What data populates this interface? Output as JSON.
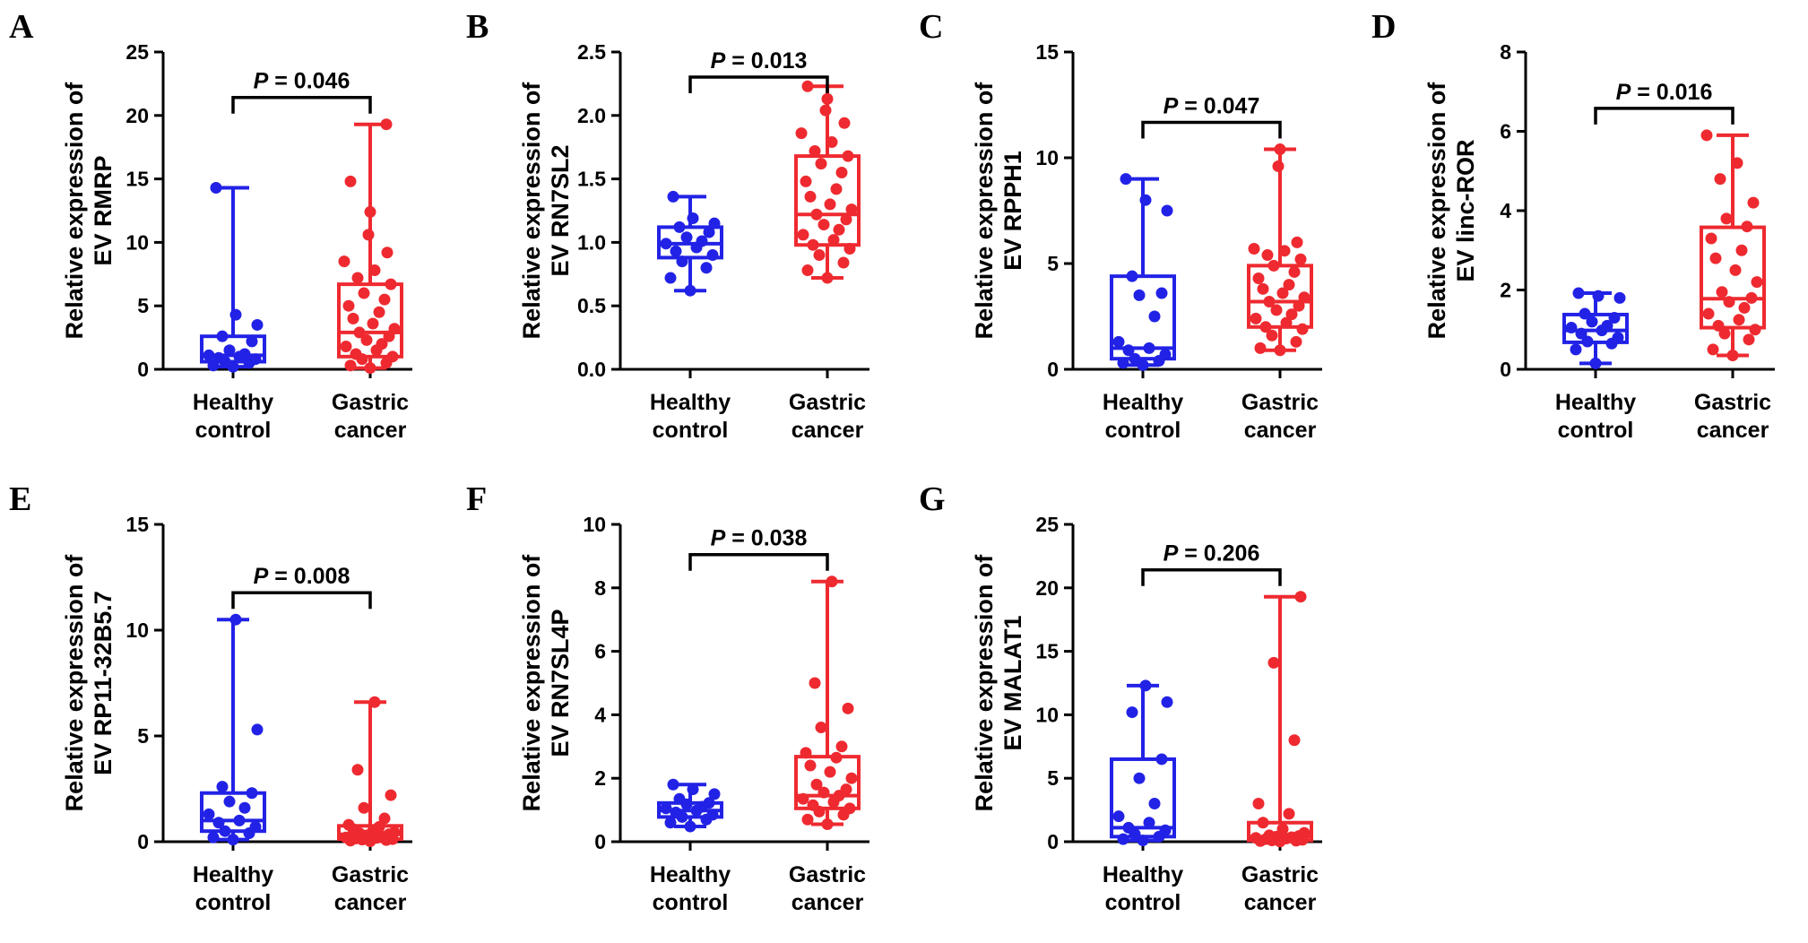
{
  "figure": {
    "colors": {
      "healthy": "#2222E6",
      "cancer": "#EE2A30",
      "axis": "#000000"
    },
    "categories": [
      {
        "line1": "Healthy",
        "line2": "control"
      },
      {
        "line1": "Gastric",
        "line2": "cancer"
      }
    ]
  },
  "chart_data": [
    {
      "type": "box",
      "panel": "A",
      "ylabel_line1": "Relative expression of",
      "ylabel_line2": "EV RMRP",
      "ylim": [
        0,
        25
      ],
      "yticks": [
        "0",
        "5",
        "10",
        "15",
        "20",
        "25"
      ],
      "p_label": "P",
      "p_value": " = 0.046",
      "series": [
        {
          "name": "Healthy control",
          "min": 0.2,
          "q1": 0.6,
          "median": 1.1,
          "q3": 2.6,
          "max": 14.3,
          "points": [
            0.2,
            0.3,
            0.5,
            0.6,
            0.8,
            0.9,
            1.0,
            1.1,
            1.2,
            1.5,
            2.2,
            2.6,
            3.5,
            4.3,
            14.3
          ]
        },
        {
          "name": "Gastric cancer",
          "min": 0.1,
          "q1": 1.0,
          "median": 2.9,
          "q3": 6.7,
          "max": 19.3,
          "points": [
            0.1,
            0.3,
            0.5,
            0.8,
            1.0,
            1.2,
            1.5,
            1.8,
            2.0,
            2.3,
            2.6,
            2.9,
            3.2,
            3.6,
            4.0,
            4.5,
            5.0,
            5.5,
            6.0,
            6.7,
            7.2,
            7.8,
            8.5,
            9.2,
            10.6,
            12.4,
            14.8,
            19.3
          ]
        }
      ]
    },
    {
      "type": "box",
      "panel": "B",
      "ylabel_line1": "Relative expression of",
      "ylabel_line2": "EV RN7SL2",
      "ylim": [
        0,
        2.5
      ],
      "yticks": [
        "0.0",
        "0.5",
        "1.0",
        "1.5",
        "2.0",
        "2.5"
      ],
      "p_label": "P",
      "p_value": " = 0.013",
      "series": [
        {
          "name": "Healthy control",
          "min": 0.62,
          "q1": 0.88,
          "median": 0.99,
          "q3": 1.12,
          "max": 1.36,
          "points": [
            0.62,
            0.72,
            0.8,
            0.85,
            0.9,
            0.93,
            0.96,
            0.99,
            1.01,
            1.04,
            1.08,
            1.12,
            1.15,
            1.19,
            1.36
          ]
        },
        {
          "name": "Gastric cancer",
          "min": 0.72,
          "q1": 0.98,
          "median": 1.22,
          "q3": 1.68,
          "max": 2.23,
          "points": [
            0.72,
            0.78,
            0.84,
            0.9,
            0.95,
            0.98,
            1.02,
            1.06,
            1.1,
            1.14,
            1.18,
            1.22,
            1.26,
            1.3,
            1.36,
            1.42,
            1.48,
            1.55,
            1.62,
            1.68,
            1.72,
            1.79,
            1.86,
            1.94,
            2.04,
            2.13,
            2.23
          ]
        }
      ]
    },
    {
      "type": "box",
      "panel": "C",
      "ylabel_line1": "Relative expression of",
      "ylabel_line2": "EV RPPH1",
      "ylim": [
        0,
        15
      ],
      "yticks": [
        "0",
        "5",
        "10",
        "15"
      ],
      "p_label": "P",
      "p_value": " = 0.047",
      "series": [
        {
          "name": "Healthy control",
          "min": 0.2,
          "q1": 0.5,
          "median": 1.0,
          "q3": 4.4,
          "max": 9.0,
          "points": [
            0.2,
            0.3,
            0.4,
            0.5,
            0.7,
            0.9,
            1.0,
            1.3,
            2.5,
            3.5,
            3.6,
            4.4,
            7.5,
            8.0,
            9.0
          ]
        },
        {
          "name": "Gastric cancer",
          "min": 0.9,
          "q1": 2.0,
          "median": 3.2,
          "q3": 4.9,
          "max": 10.4,
          "points": [
            0.9,
            1.0,
            1.3,
            1.6,
            1.9,
            2.0,
            2.2,
            2.4,
            2.6,
            2.8,
            3.0,
            3.2,
            3.4,
            3.6,
            3.8,
            4.0,
            4.3,
            4.6,
            4.9,
            5.2,
            5.4,
            5.6,
            5.7,
            6.0,
            9.6,
            10.4
          ]
        }
      ]
    },
    {
      "type": "box",
      "panel": "D",
      "ylabel_line1": "Relative expression of",
      "ylabel_line2": "EV linc-ROR",
      "ylim": [
        0,
        8
      ],
      "yticks": [
        "0",
        "2",
        "4",
        "6",
        "8"
      ],
      "p_label": "P",
      "p_value": " = 0.016",
      "series": [
        {
          "name": "Healthy control",
          "min": 0.15,
          "q1": 0.68,
          "median": 0.98,
          "q3": 1.38,
          "max": 1.92,
          "points": [
            0.15,
            0.5,
            0.65,
            0.7,
            0.8,
            0.9,
            0.98,
            1.05,
            1.1,
            1.2,
            1.3,
            1.4,
            1.8,
            1.85,
            1.92
          ]
        },
        {
          "name": "Gastric cancer",
          "min": 0.35,
          "q1": 1.05,
          "median": 1.78,
          "q3": 3.58,
          "max": 5.9,
          "points": [
            0.35,
            0.5,
            0.75,
            0.9,
            1.0,
            1.1,
            1.25,
            1.4,
            1.55,
            1.7,
            1.8,
            1.95,
            2.2,
            2.5,
            2.8,
            3.0,
            3.3,
            3.6,
            3.8,
            4.2,
            4.8,
            5.2,
            5.9
          ]
        }
      ]
    },
    {
      "type": "box",
      "panel": "E",
      "ylabel_line1": "Relative expression of",
      "ylabel_line2": "EV RP11-32B5.7",
      "ylim": [
        0,
        15
      ],
      "yticks": [
        "0",
        "5",
        "10",
        "15"
      ],
      "p_label": "P",
      "p_value": " = 0.008",
      "series": [
        {
          "name": "Healthy control",
          "min": 0.1,
          "q1": 0.5,
          "median": 1.0,
          "q3": 2.3,
          "max": 10.5,
          "points": [
            0.1,
            0.2,
            0.4,
            0.5,
            0.7,
            0.9,
            1.0,
            1.3,
            1.6,
            1.9,
            2.3,
            2.6,
            5.3,
            10.5
          ]
        },
        {
          "name": "Gastric cancer",
          "min": 0.02,
          "q1": 0.12,
          "median": 0.35,
          "q3": 0.75,
          "max": 6.6,
          "points": [
            0.02,
            0.05,
            0.08,
            0.1,
            0.12,
            0.15,
            0.18,
            0.2,
            0.25,
            0.3,
            0.35,
            0.4,
            0.45,
            0.5,
            0.6,
            0.7,
            0.8,
            1.1,
            1.6,
            2.2,
            3.4,
            6.6
          ]
        }
      ]
    },
    {
      "type": "box",
      "panel": "F",
      "ylabel_line1": "Relative expression of",
      "ylabel_line2": "EV RN7SL4P",
      "ylim": [
        0,
        10
      ],
      "yticks": [
        "0",
        "2",
        "4",
        "6",
        "8",
        "10"
      ],
      "p_label": "P",
      "p_value": " = 0.038",
      "series": [
        {
          "name": "Healthy control",
          "min": 0.48,
          "q1": 0.78,
          "median": 0.98,
          "q3": 1.22,
          "max": 1.8,
          "points": [
            0.48,
            0.6,
            0.7,
            0.78,
            0.85,
            0.92,
            0.98,
            1.05,
            1.1,
            1.18,
            1.22,
            1.35,
            1.5,
            1.65,
            1.8
          ]
        },
        {
          "name": "Gastric cancer",
          "min": 0.55,
          "q1": 1.05,
          "median": 1.45,
          "q3": 2.68,
          "max": 8.2,
          "points": [
            0.55,
            0.7,
            0.85,
            0.95,
            1.05,
            1.15,
            1.25,
            1.35,
            1.45,
            1.55,
            1.65,
            1.8,
            2.0,
            2.2,
            2.4,
            2.65,
            2.8,
            3.0,
            3.6,
            4.2,
            5.0,
            8.2
          ]
        }
      ]
    },
    {
      "type": "box",
      "panel": "G",
      "ylabel_line1": "Relative expression of",
      "ylabel_line2": "EV MALAT1",
      "ylim": [
        0,
        25
      ],
      "yticks": [
        "0",
        "5",
        "10",
        "15",
        "20",
        "25"
      ],
      "p_label": "P",
      "p_value": " = 0.206",
      "series": [
        {
          "name": "Healthy control",
          "min": 0.1,
          "q1": 0.4,
          "median": 1.1,
          "q3": 6.5,
          "max": 12.3,
          "points": [
            0.1,
            0.2,
            0.4,
            0.6,
            0.9,
            1.1,
            1.5,
            2.0,
            3.0,
            5.0,
            6.5,
            10.2,
            11.0,
            12.3
          ]
        },
        {
          "name": "Gastric cancer",
          "min": 0.02,
          "q1": 0.1,
          "median": 0.4,
          "q3": 1.5,
          "max": 19.3,
          "points": [
            0.02,
            0.05,
            0.08,
            0.1,
            0.15,
            0.2,
            0.25,
            0.3,
            0.35,
            0.4,
            0.45,
            0.5,
            0.7,
            1.0,
            1.5,
            2.2,
            3.0,
            8.0,
            14.1,
            19.3
          ]
        }
      ]
    }
  ]
}
